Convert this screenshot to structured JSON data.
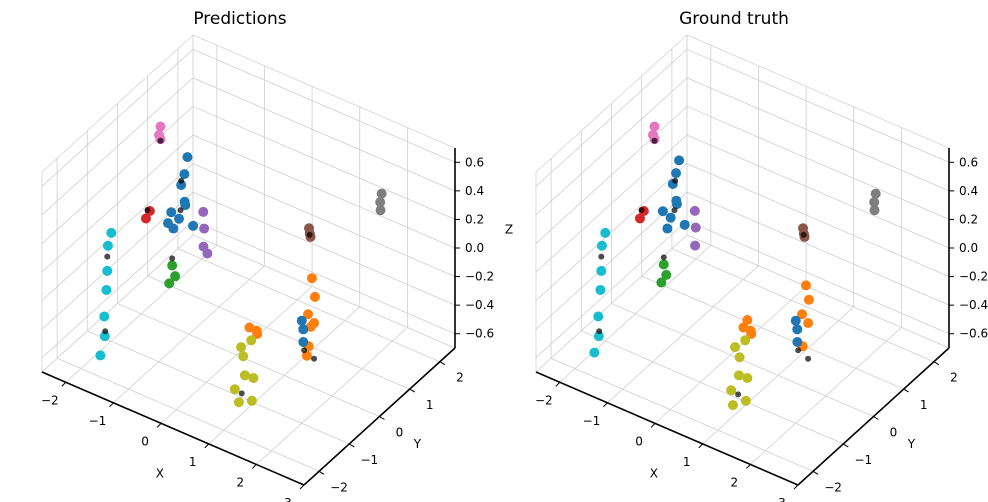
{
  "chart_data": [
    {
      "type": "scatter",
      "title": "Predictions",
      "xlabel": "X",
      "ylabel": "Y",
      "zlabel": "Z",
      "x_ticks": [
        "−2",
        "−1",
        "0",
        "1",
        "2",
        "3"
      ],
      "y_ticks": [
        "−2",
        "−1",
        "0",
        "1",
        "2"
      ],
      "z_ticks": [
        "−0.6",
        "−0.4",
        "−0.2",
        "0.0",
        "0.2",
        "0.4",
        "0.6"
      ],
      "xlim": [
        -2.5,
        3.0
      ],
      "ylim": [
        -2.5,
        2.5
      ],
      "zlim": [
        -0.7,
        0.7
      ],
      "grid": true,
      "series": [
        {
          "color": "#1f77b4",
          "points": [
            [
              -1.2,
              -0.2,
              0.05
            ],
            [
              -1.05,
              -0.25,
              0.15
            ],
            [
              -0.95,
              -0.2,
              0.25
            ],
            [
              -1.1,
              -0.1,
              0.35
            ],
            [
              -1.0,
              -0.15,
              0.45
            ],
            [
              -0.9,
              -0.3,
              0.3
            ],
            [
              -1.15,
              -0.35,
              0.2
            ],
            [
              -1.0,
              -0.05,
              0.55
            ],
            [
              -1.25,
              -0.3,
              0.1
            ],
            [
              -0.85,
              -0.1,
              0.1
            ]
          ]
        },
        {
          "color": "#9467bd",
          "points": [
            [
              -0.65,
              -0.05,
              0.1
            ],
            [
              -0.6,
              -0.15,
              0.0
            ],
            [
              -0.7,
              0.0,
              0.2
            ],
            [
              -0.55,
              -0.1,
              -0.05
            ]
          ]
        },
        {
          "color": "#ff7f0e",
          "points": [
            [
              1.55,
              0.05,
              0.05
            ],
            [
              1.55,
              0.15,
              -0.1
            ],
            [
              1.5,
              0.2,
              -0.3
            ],
            [
              1.45,
              0.1,
              -0.45
            ],
            [
              1.5,
              0.0,
              -0.2
            ],
            [
              1.35,
              0.2,
              -0.55
            ],
            [
              1.4,
              0.25,
              -0.35
            ]
          ]
        },
        {
          "color": "#ff7f0e",
          "points": [
            [
              0.65,
              -0.6,
              -0.3
            ],
            [
              0.75,
              -0.5,
              -0.35
            ],
            [
              0.8,
              -0.6,
              -0.3
            ]
          ]
        },
        {
          "color": "#bcbd22",
          "points": [
            [
              0.9,
              -1.2,
              -0.35
            ],
            [
              1.0,
              -1.3,
              -0.45
            ],
            [
              1.05,
              -1.1,
              -0.5
            ],
            [
              0.95,
              -1.35,
              -0.25
            ],
            [
              1.1,
              -1.25,
              -0.2
            ],
            [
              0.85,
              -1.4,
              -0.55
            ],
            [
              1.0,
              -1.5,
              -0.6
            ],
            [
              1.05,
              -1.15,
              -0.65
            ]
          ]
        },
        {
          "color": "#17becf",
          "points": [
            [
              -1.75,
              -1.5,
              0.1
            ],
            [
              -1.7,
              -1.6,
              -0.05
            ],
            [
              -1.75,
              -1.55,
              -0.2
            ],
            [
              -1.7,
              -1.7,
              -0.35
            ],
            [
              -1.72,
              -1.65,
              -0.5
            ],
            [
              -1.75,
              -1.75,
              -0.62
            ],
            [
              -1.68,
              -1.5,
              0.2
            ]
          ]
        },
        {
          "color": "#2ca02c",
          "points": [
            [
              -0.75,
              -0.95,
              0.0
            ],
            [
              -0.72,
              -0.9,
              -0.08
            ],
            [
              -0.78,
              -1.0,
              -0.12
            ]
          ]
        },
        {
          "color": "#d62728",
          "points": [
            [
              -1.3,
              -0.95,
              0.25
            ],
            [
              -1.25,
              -0.9,
              0.3
            ]
          ]
        },
        {
          "color": "#e377c2",
          "points": [
            [
              -2.2,
              0.9,
              0.35
            ],
            [
              -2.2,
              0.95,
              0.4
            ],
            [
              -2.18,
              0.92,
              0.32
            ]
          ]
        },
        {
          "color": "#8c564b",
          "points": [
            [
              0.95,
              0.9,
              0.15
            ],
            [
              0.95,
              0.95,
              0.08
            ],
            [
              0.98,
              0.88,
              0.12
            ]
          ]
        },
        {
          "color": "#7f7f7f",
          "points": [
            [
              2.0,
              1.6,
              0.35
            ],
            [
              2.0,
              1.65,
              0.4
            ],
            [
              2.02,
              1.58,
              0.3
            ]
          ]
        },
        {
          "color": "#1f77b4",
          "points": [
            [
              1.4,
              -0.05,
              -0.25
            ],
            [
              1.4,
              0.0,
              -0.32
            ],
            [
              1.42,
              -0.03,
              -0.4
            ]
          ]
        },
        {
          "color": "#000000",
          "points": [
            [
              -1.1,
              -0.1,
              0.38
            ],
            [
              -1.05,
              -0.2,
              0.2
            ],
            [
              -1.3,
              -0.9,
              0.3
            ],
            [
              -1.7,
              -1.6,
              0.05
            ],
            [
              -1.68,
              -1.7,
              -0.45
            ],
            [
              0.9,
              -1.25,
              -0.6
            ],
            [
              1.5,
              0.2,
              -0.55
            ],
            [
              0.95,
              0.92,
              0.1
            ],
            [
              -2.2,
              0.95,
              0.3
            ],
            [
              -0.75,
              -0.95,
              0.05
            ],
            [
              1.45,
              -0.05,
              -0.45
            ]
          ]
        }
      ]
    },
    {
      "type": "scatter",
      "title": "Ground truth",
      "xlabel": "X",
      "ylabel": "Y",
      "zlabel": "Z",
      "x_ticks": [
        "−2",
        "−1",
        "0",
        "1",
        "2",
        "3"
      ],
      "y_ticks": [
        "−2",
        "−1",
        "0",
        "1",
        "2"
      ],
      "z_ticks": [
        "−0.6",
        "−0.4",
        "−0.2",
        "0.0",
        "0.2",
        "0.4",
        "0.6"
      ],
      "xlim": [
        -2.5,
        3.0
      ],
      "ylim": [
        -2.5,
        2.5
      ],
      "zlim": [
        -0.7,
        0.7
      ],
      "grid": true,
      "series": [
        {
          "color": "#1f77b4",
          "points": [
            [
              -1.2,
              -0.2,
              0.05
            ],
            [
              -1.1,
              -0.25,
              0.15
            ],
            [
              -1.0,
              -0.2,
              0.25
            ],
            [
              -1.15,
              -0.1,
              0.35
            ],
            [
              -1.05,
              -0.15,
              0.45
            ],
            [
              -0.95,
              -0.3,
              0.3
            ],
            [
              -1.2,
              -0.35,
              0.2
            ],
            [
              -1.05,
              -0.05,
              0.52
            ],
            [
              -0.9,
              -0.1,
              0.1
            ]
          ]
        },
        {
          "color": "#9467bd",
          "points": [
            [
              -0.7,
              -0.05,
              0.1
            ],
            [
              -0.65,
              -0.15,
              0.0
            ],
            [
              -0.75,
              0.0,
              0.2
            ]
          ]
        },
        {
          "color": "#ff7f0e",
          "points": [
            [
              1.55,
              0.05,
              0.0
            ],
            [
              1.55,
              0.15,
              -0.12
            ],
            [
              1.5,
              0.2,
              -0.3
            ],
            [
              1.45,
              0.1,
              -0.45
            ],
            [
              1.5,
              0.0,
              -0.2
            ]
          ]
        },
        {
          "color": "#ff7f0e",
          "points": [
            [
              0.65,
              -0.6,
              -0.3
            ],
            [
              0.75,
              -0.5,
              -0.35
            ],
            [
              0.8,
              -0.6,
              -0.3
            ],
            [
              0.7,
              -0.55,
              -0.25
            ]
          ]
        },
        {
          "color": "#bcbd22",
          "points": [
            [
              0.95,
              -1.2,
              -0.35
            ],
            [
              1.0,
              -1.3,
              -0.45
            ],
            [
              1.05,
              -1.1,
              -0.5
            ],
            [
              0.95,
              -1.35,
              -0.25
            ],
            [
              1.1,
              -1.25,
              -0.2
            ],
            [
              0.9,
              -1.4,
              -0.55
            ],
            [
              1.0,
              -1.5,
              -0.62
            ],
            [
              1.05,
              -1.15,
              -0.65
            ]
          ]
        },
        {
          "color": "#17becf",
          "points": [
            [
              -1.75,
              -1.5,
              0.1
            ],
            [
              -1.7,
              -1.6,
              -0.05
            ],
            [
              -1.75,
              -1.55,
              -0.2
            ],
            [
              -1.7,
              -1.7,
              -0.35
            ],
            [
              -1.72,
              -1.65,
              -0.5
            ],
            [
              -1.75,
              -1.75,
              -0.6
            ],
            [
              -1.68,
              -1.5,
              0.2
            ]
          ]
        },
        {
          "color": "#2ca02c",
          "points": [
            [
              -0.8,
              -0.95,
              0.0
            ],
            [
              -0.78,
              -0.9,
              -0.08
            ],
            [
              -0.82,
              -1.0,
              -0.12
            ]
          ]
        },
        {
          "color": "#d62728",
          "points": [
            [
              -1.3,
              -0.95,
              0.25
            ],
            [
              -1.25,
              -0.9,
              0.3
            ]
          ]
        },
        {
          "color": "#e377c2",
          "points": [
            [
              -2.2,
              0.9,
              0.35
            ],
            [
              -2.2,
              0.95,
              0.4
            ],
            [
              -2.18,
              0.92,
              0.32
            ]
          ]
        },
        {
          "color": "#8c564b",
          "points": [
            [
              0.95,
              0.9,
              0.15
            ],
            [
              0.95,
              0.95,
              0.08
            ],
            [
              0.98,
              0.88,
              0.12
            ]
          ]
        },
        {
          "color": "#7f7f7f",
          "points": [
            [
              2.0,
              1.6,
              0.35
            ],
            [
              2.0,
              1.65,
              0.4
            ],
            [
              2.02,
              1.58,
              0.3
            ]
          ]
        },
        {
          "color": "#1f77b4",
          "points": [
            [
              1.4,
              -0.05,
              -0.25
            ],
            [
              1.4,
              0.0,
              -0.32
            ],
            [
              1.42,
              -0.03,
              -0.4
            ]
          ]
        },
        {
          "color": "#000000",
          "points": [
            [
              -1.1,
              -0.1,
              0.38
            ],
            [
              -1.05,
              -0.2,
              0.2
            ],
            [
              -1.3,
              -0.9,
              0.3
            ],
            [
              -1.7,
              -1.6,
              0.05
            ],
            [
              -1.68,
              -1.7,
              -0.45
            ],
            [
              0.95,
              -1.25,
              -0.6
            ],
            [
              1.5,
              0.2,
              -0.55
            ],
            [
              0.95,
              0.92,
              0.1
            ],
            [
              -2.2,
              0.95,
              0.3
            ],
            [
              -0.8,
              -0.95,
              0.05
            ],
            [
              1.45,
              -0.05,
              -0.45
            ]
          ]
        }
      ]
    }
  ]
}
